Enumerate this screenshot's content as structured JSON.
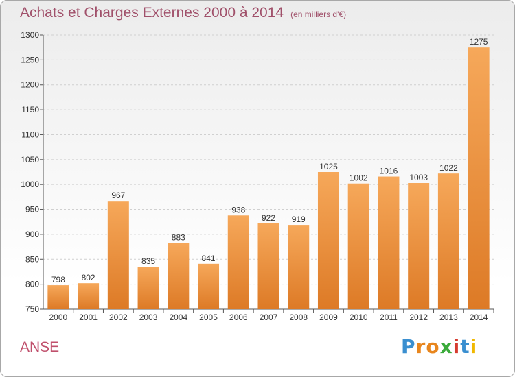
{
  "header": {
    "title": "Achats et Charges Externes 2000 à 2014",
    "unit": "(en milliers d'€)"
  },
  "footer": {
    "city": "ANSE",
    "brand": "Proxiti"
  },
  "colors": {
    "bar_top": "#f6a85a",
    "bar_bottom": "#dd7a26",
    "title": "#a0506a",
    "city": "#c0506c"
  },
  "chart_data": {
    "type": "bar",
    "title": "Achats et Charges Externes 2000 à 2014",
    "subtitle": "(en milliers d'€)",
    "xlabel": "",
    "ylabel": "",
    "categories": [
      "2000",
      "2001",
      "2002",
      "2003",
      "2004",
      "2005",
      "2006",
      "2007",
      "2008",
      "2009",
      "2010",
      "2011",
      "2012",
      "2013",
      "2014"
    ],
    "values": [
      798,
      802,
      967,
      835,
      883,
      841,
      938,
      922,
      919,
      1025,
      1002,
      1016,
      1003,
      1022,
      1275
    ],
    "ylim": [
      750,
      1300
    ],
    "yticks": [
      750,
      800,
      850,
      900,
      950,
      1000,
      1050,
      1100,
      1150,
      1200,
      1250,
      1300
    ],
    "grid": true,
    "legend": "none"
  }
}
